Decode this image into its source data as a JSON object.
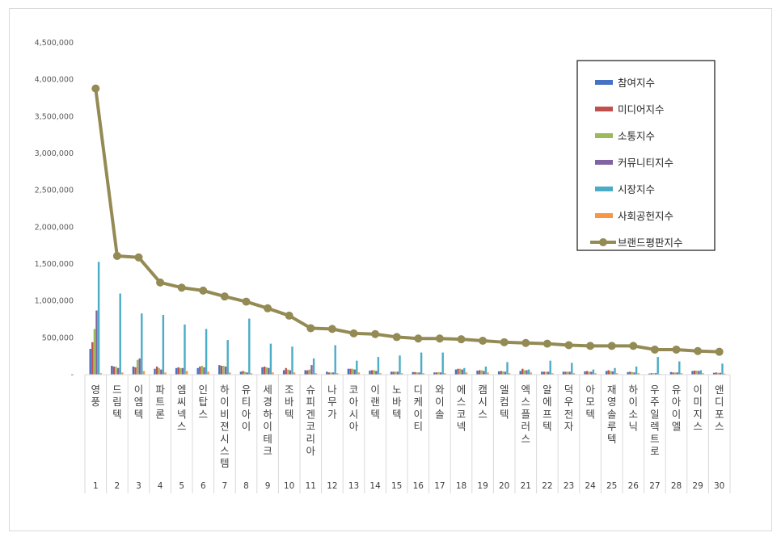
{
  "chart_data": {
    "type": "bar",
    "title": "",
    "xlabel": "",
    "ylabel": "",
    "ylim": [
      0,
      4500000
    ],
    "yticks": [
      "-",
      "500,000",
      "1,000,000",
      "1,500,000",
      "2,000,000",
      "2,500,000",
      "3,000,000",
      "3,500,000",
      "4,000,000",
      "4,500,000"
    ],
    "ranks": [
      "1",
      "2",
      "3",
      "4",
      "5",
      "6",
      "7",
      "8",
      "9",
      "10",
      "11",
      "12",
      "13",
      "14",
      "15",
      "16",
      "17",
      "18",
      "19",
      "20",
      "21",
      "22",
      "23",
      "24",
      "25",
      "26",
      "27",
      "28",
      "29",
      "30"
    ],
    "categories": [
      "영풍",
      "드림텍",
      "이엠텍",
      "파트론",
      "엠씨넥스",
      "인탑스",
      "하이비젼시스템",
      "유티아이",
      "세경하이테크",
      "조바텍",
      "슈피겐코리아",
      "나무가",
      "코아시아",
      "이랜텍",
      "노바텍",
      "디케이티",
      "와이솔",
      "에스코넥",
      "캠시스",
      "엘컴텍",
      "엑스플러스",
      "알에프텍",
      "덕우전자",
      "아모텍",
      "재영솔루텍",
      "하이소닉",
      "우주일렉트로",
      "유아이엘",
      "이미지스",
      "앤디포스"
    ],
    "legend_position": "right",
    "series": [
      {
        "name": "참여지수",
        "color": "#4472c4",
        "kind": "bar",
        "values": [
          350000,
          120000,
          110000,
          80000,
          90000,
          90000,
          130000,
          40000,
          100000,
          60000,
          60000,
          40000,
          80000,
          55000,
          40000,
          35000,
          30000,
          70000,
          55000,
          45000,
          50000,
          40000,
          40000,
          45000,
          50000,
          35000,
          15000,
          35000,
          50000,
          25000
        ]
      },
      {
        "name": "미디어지수",
        "color": "#c0504d",
        "kind": "bar",
        "values": [
          440000,
          110000,
          100000,
          110000,
          100000,
          110000,
          120000,
          50000,
          110000,
          90000,
          60000,
          30000,
          80000,
          60000,
          40000,
          35000,
          30000,
          80000,
          60000,
          50000,
          80000,
          40000,
          40000,
          50000,
          60000,
          40000,
          20000,
          30000,
          55000,
          30000
        ]
      },
      {
        "name": "소통지수",
        "color": "#9bbb59",
        "kind": "bar",
        "values": [
          620000,
          110000,
          200000,
          90000,
          90000,
          120000,
          120000,
          40000,
          100000,
          70000,
          70000,
          30000,
          80000,
          60000,
          40000,
          30000,
          35000,
          80000,
          60000,
          45000,
          60000,
          40000,
          40000,
          40000,
          50000,
          35000,
          20000,
          30000,
          55000,
          25000
        ]
      },
      {
        "name": "커뮤니티지수",
        "color": "#8064a2",
        "kind": "bar",
        "values": [
          870000,
          90000,
          220000,
          70000,
          90000,
          100000,
          110000,
          30000,
          90000,
          60000,
          130000,
          30000,
          70000,
          50000,
          40000,
          30000,
          30000,
          70000,
          50000,
          40000,
          60000,
          40000,
          40000,
          40000,
          45000,
          30000,
          20000,
          30000,
          50000,
          25000
        ]
      },
      {
        "name": "시장지수",
        "color": "#4bacc6",
        "kind": "bar",
        "values": [
          1530000,
          1100000,
          830000,
          810000,
          680000,
          620000,
          470000,
          760000,
          420000,
          380000,
          220000,
          400000,
          190000,
          240000,
          260000,
          300000,
          300000,
          90000,
          110000,
          170000,
          70000,
          190000,
          160000,
          70000,
          90000,
          110000,
          240000,
          180000,
          60000,
          150000
        ]
      },
      {
        "name": "사회공헌지수",
        "color": "#f79646",
        "kind": "bar",
        "values": [
          20000,
          30000,
          50000,
          30000,
          50000,
          40000,
          30000,
          20000,
          30000,
          30000,
          20000,
          20000,
          30000,
          20000,
          20000,
          20000,
          20000,
          30000,
          30000,
          20000,
          30000,
          20000,
          20000,
          20000,
          20000,
          20000,
          10000,
          20000,
          20000,
          15000
        ]
      },
      {
        "name": "브랜드평판지수",
        "color": "#948a54",
        "kind": "line",
        "values": [
          3880000,
          1610000,
          1590000,
          1250000,
          1180000,
          1140000,
          1060000,
          990000,
          900000,
          800000,
          630000,
          620000,
          560000,
          550000,
          510000,
          490000,
          490000,
          480000,
          460000,
          440000,
          430000,
          420000,
          400000,
          390000,
          390000,
          390000,
          340000,
          340000,
          320000,
          310000
        ]
      }
    ]
  }
}
